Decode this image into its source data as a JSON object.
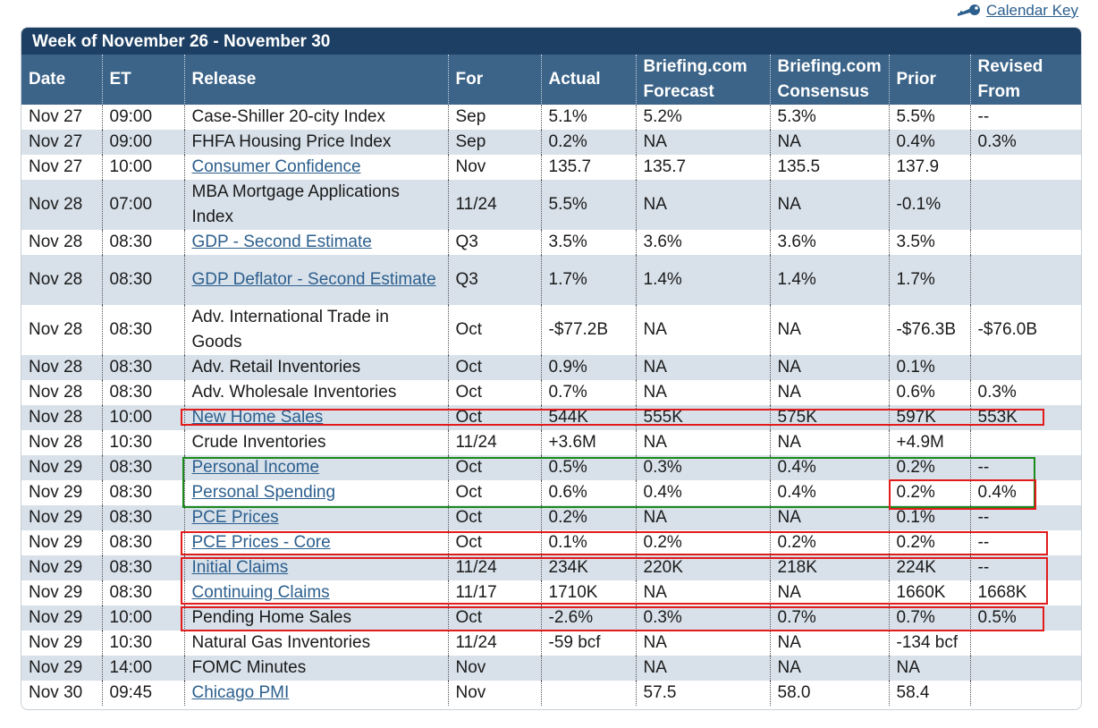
{
  "calendar_key": {
    "label": "Calendar Key",
    "icon": "key-icon"
  },
  "week_title": "Week of November 26 - November 30",
  "headers": {
    "date": "Date",
    "et": "ET",
    "release": "Release",
    "for": "For",
    "actual": "Actual",
    "forecast_1": "Briefing.com",
    "forecast_2": "Forecast",
    "consensus_1": "Briefing.com",
    "consensus_2": "Consensus",
    "prior": "Prior",
    "revised_1": "Revised",
    "revised_2": "From"
  },
  "rows": [
    {
      "date": "Nov 27",
      "et": "09:00",
      "release": "Case-Shiller 20-city Index",
      "link": false,
      "for": "Sep",
      "actual": "5.1%",
      "forecast": "5.2%",
      "consensus": "5.3%",
      "prior": "5.5%",
      "revised": "--"
    },
    {
      "date": "Nov 27",
      "et": "09:00",
      "release": "FHFA Housing Price Index",
      "link": false,
      "for": "Sep",
      "actual": "0.2%",
      "forecast": "NA",
      "consensus": "NA",
      "prior": "0.4%",
      "revised": "0.3%"
    },
    {
      "date": "Nov 27",
      "et": "10:00",
      "release": "Consumer Confidence",
      "link": true,
      "for": "Nov",
      "actual": "135.7",
      "forecast": "135.7",
      "consensus": "135.5",
      "prior": "137.9",
      "revised": ""
    },
    {
      "date": "Nov 28",
      "et": "07:00",
      "release": "MBA Mortgage Applications Index",
      "link": false,
      "for": "11/24",
      "actual": "5.5%",
      "forecast": "NA",
      "consensus": "NA",
      "prior": "-0.1%",
      "revised": ""
    },
    {
      "date": "Nov 28",
      "et": "08:30",
      "release": "GDP - Second Estimate",
      "link": true,
      "for": "Q3",
      "actual": "3.5%",
      "forecast": "3.6%",
      "consensus": "3.6%",
      "prior": "3.5%",
      "revised": ""
    },
    {
      "date": "Nov 28",
      "et": "08:30",
      "release": "GDP Deflator - Second Estimate",
      "link": true,
      "for": "Q3",
      "actual": "1.7%",
      "forecast": "1.4%",
      "consensus": "1.4%",
      "prior": "1.7%",
      "revised": ""
    },
    {
      "date": "Nov 28",
      "et": "08:30",
      "release": "Adv. International Trade in Goods",
      "link": false,
      "for": "Oct",
      "actual": "-$77.2B",
      "forecast": "NA",
      "consensus": "NA",
      "prior": "-$76.3B",
      "revised": "-$76.0B"
    },
    {
      "date": "Nov 28",
      "et": "08:30",
      "release": "Adv. Retail Inventories",
      "link": false,
      "for": "Oct",
      "actual": "0.9%",
      "forecast": "NA",
      "consensus": "NA",
      "prior": "0.1%",
      "revised": ""
    },
    {
      "date": "Nov 28",
      "et": "08:30",
      "release": "Adv. Wholesale Inventories",
      "link": false,
      "for": "Oct",
      "actual": "0.7%",
      "forecast": "NA",
      "consensus": "NA",
      "prior": "0.6%",
      "revised": "0.3%"
    },
    {
      "date": "Nov 28",
      "et": "10:00",
      "release": "New Home Sales",
      "link": true,
      "for": "Oct",
      "actual": "544K",
      "forecast": "555K",
      "consensus": "575K",
      "prior": "597K",
      "revised": "553K"
    },
    {
      "date": "Nov 28",
      "et": "10:30",
      "release": "Crude Inventories",
      "link": false,
      "for": "11/24",
      "actual": "+3.6M",
      "forecast": "NA",
      "consensus": "NA",
      "prior": "+4.9M",
      "revised": ""
    },
    {
      "date": "Nov 29",
      "et": "08:30",
      "release": "Personal Income",
      "link": true,
      "for": "Oct",
      "actual": "0.5%",
      "forecast": "0.3%",
      "consensus": "0.4%",
      "prior": "0.2%",
      "revised": "--"
    },
    {
      "date": "Nov 29",
      "et": "08:30",
      "release": "Personal Spending",
      "link": true,
      "for": "Oct",
      "actual": "0.6%",
      "forecast": "0.4%",
      "consensus": "0.4%",
      "prior": "0.2%",
      "revised": "0.4%"
    },
    {
      "date": "Nov 29",
      "et": "08:30",
      "release": "PCE Prices",
      "link": true,
      "for": "Oct",
      "actual": "0.2%",
      "forecast": "NA",
      "consensus": "NA",
      "prior": "0.1%",
      "revised": "--"
    },
    {
      "date": "Nov 29",
      "et": "08:30",
      "release": "PCE Prices - Core",
      "link": true,
      "for": "Oct",
      "actual": "0.1%",
      "forecast": "0.2%",
      "consensus": "0.2%",
      "prior": "0.2%",
      "revised": "--"
    },
    {
      "date": "Nov 29",
      "et": "08:30",
      "release": "Initial Claims",
      "link": true,
      "for": "11/24",
      "actual": "234K",
      "forecast": "220K",
      "consensus": "218K",
      "prior": "224K",
      "revised": "--"
    },
    {
      "date": "Nov 29",
      "et": "08:30",
      "release": "Continuing Claims",
      "link": true,
      "for": "11/17",
      "actual": "1710K",
      "forecast": "NA",
      "consensus": "NA",
      "prior": "1660K",
      "revised": "1668K"
    },
    {
      "date": "Nov 29",
      "et": "10:00",
      "release": "Pending Home Sales",
      "link": false,
      "for": "Oct",
      "actual": "-2.6%",
      "forecast": "0.3%",
      "consensus": "0.7%",
      "prior": "0.7%",
      "revised": "0.5%"
    },
    {
      "date": "Nov 29",
      "et": "10:30",
      "release": "Natural Gas Inventories",
      "link": false,
      "for": "11/24",
      "actual": "-59 bcf",
      "forecast": "NA",
      "consensus": "NA",
      "prior": "-134 bcf",
      "revised": ""
    },
    {
      "date": "Nov 29",
      "et": "14:00",
      "release": "FOMC Minutes",
      "link": false,
      "for": "Nov",
      "actual": "",
      "forecast": "NA",
      "consensus": "NA",
      "prior": "NA",
      "revised": ""
    },
    {
      "date": "Nov 30",
      "et": "09:45",
      "release": "Chicago PMI",
      "link": true,
      "for": "Nov",
      "actual": "",
      "forecast": "57.5",
      "consensus": "58.0",
      "prior": "58.4",
      "revised": ""
    }
  ],
  "colors": {
    "title_bar": "#1c3f63",
    "header_bar": "#3c6488",
    "row_stripe": "#d8e1ea",
    "link": "#2c5f8e",
    "highlight_red": "#e21b1b",
    "highlight_green": "#1a8a1a"
  }
}
